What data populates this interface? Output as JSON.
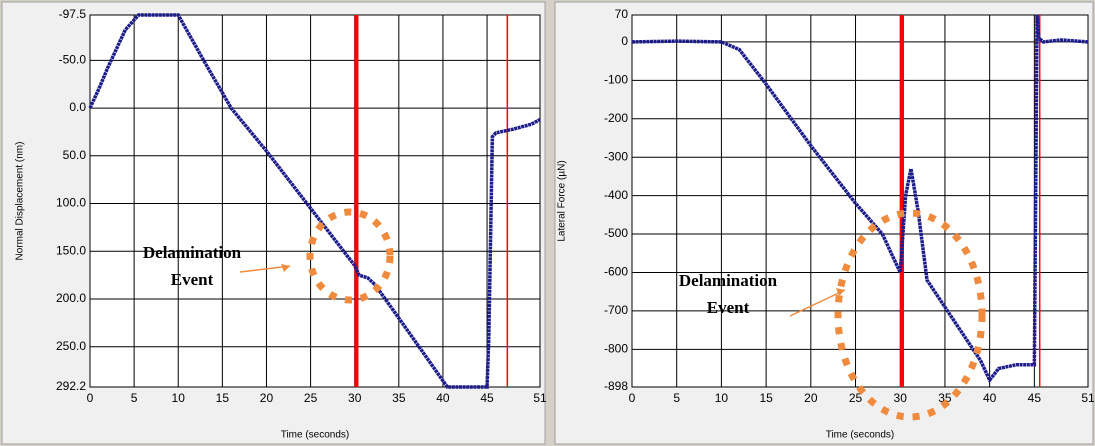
{
  "chart_data": [
    {
      "type": "line",
      "x_label": "Time (seconds)",
      "y_label": "Normal Displacement (nm)",
      "y_inverted": true,
      "grid": true,
      "color": "#1c1c8a",
      "vline_color": "#ff0000",
      "xlim": [
        0,
        51
      ],
      "xticks": [
        0,
        5,
        10,
        15,
        20,
        25,
        30,
        35,
        40,
        45,
        51
      ],
      "ylim": [
        -97.5,
        292.2
      ],
      "yticks": [
        {
          "value": -97.5,
          "label": "-97.5"
        },
        {
          "value": -50,
          "label": "-50.0"
        },
        {
          "value": 0,
          "label": "0.0"
        },
        {
          "value": 50,
          "label": "50.0"
        },
        {
          "value": 100,
          "label": "100.0"
        },
        {
          "value": 150,
          "label": "150.0"
        },
        {
          "value": 200,
          "label": "200.0"
        },
        {
          "value": 250,
          "label": "250.0"
        },
        {
          "value": 292.2,
          "label": "292.2"
        }
      ],
      "x": [
        0,
        1,
        2,
        3,
        4,
        5.5,
        10,
        13,
        16,
        20,
        25,
        30,
        30.5,
        31.5,
        32.3,
        35,
        40.5,
        45,
        45.2,
        45.4,
        45.6,
        46,
        48,
        50,
        51
      ],
      "values": [
        0,
        -20,
        -42,
        -62,
        -82,
        -97.5,
        -97.5,
        -48,
        0,
        45,
        105,
        165,
        175,
        178,
        185,
        220,
        292.2,
        292.2,
        240,
        135,
        30,
        26,
        22,
        17,
        12
      ],
      "vlines": [
        30.2,
        47.3
      ],
      "annotation": [
        "Delamination",
        "Event"
      ]
    },
    {
      "type": "line",
      "x_label": "Time (seconds)",
      "y_label": "Lateral Force (µN)",
      "y_inverted": false,
      "grid": true,
      "color": "#1c1c8a",
      "vline_color": "#ff0000",
      "xlim": [
        0,
        51
      ],
      "xticks": [
        0,
        5,
        10,
        15,
        20,
        25,
        30,
        35,
        40,
        45,
        51
      ],
      "ylim": [
        -898,
        70
      ],
      "yticks": [
        70,
        0,
        -100,
        -200,
        -300,
        -400,
        -500,
        -600,
        -700,
        -800,
        -898
      ],
      "x": [
        0,
        5,
        10,
        12,
        15,
        20,
        25,
        28,
        30,
        30.6,
        31.2,
        32,
        33,
        35,
        37,
        39,
        40,
        41,
        43,
        45,
        45.3,
        45.5,
        46,
        48,
        51
      ],
      "values": [
        0,
        2,
        0,
        -20,
        -110,
        -270,
        -420,
        -500,
        -600,
        -400,
        -330,
        -440,
        -620,
        -690,
        -760,
        -830,
        -880,
        -850,
        -840,
        -840,
        70,
        10,
        0,
        5,
        0
      ],
      "vlines": [
        30.2,
        45.6
      ],
      "annotation": [
        "Delamination",
        "Event"
      ]
    }
  ]
}
